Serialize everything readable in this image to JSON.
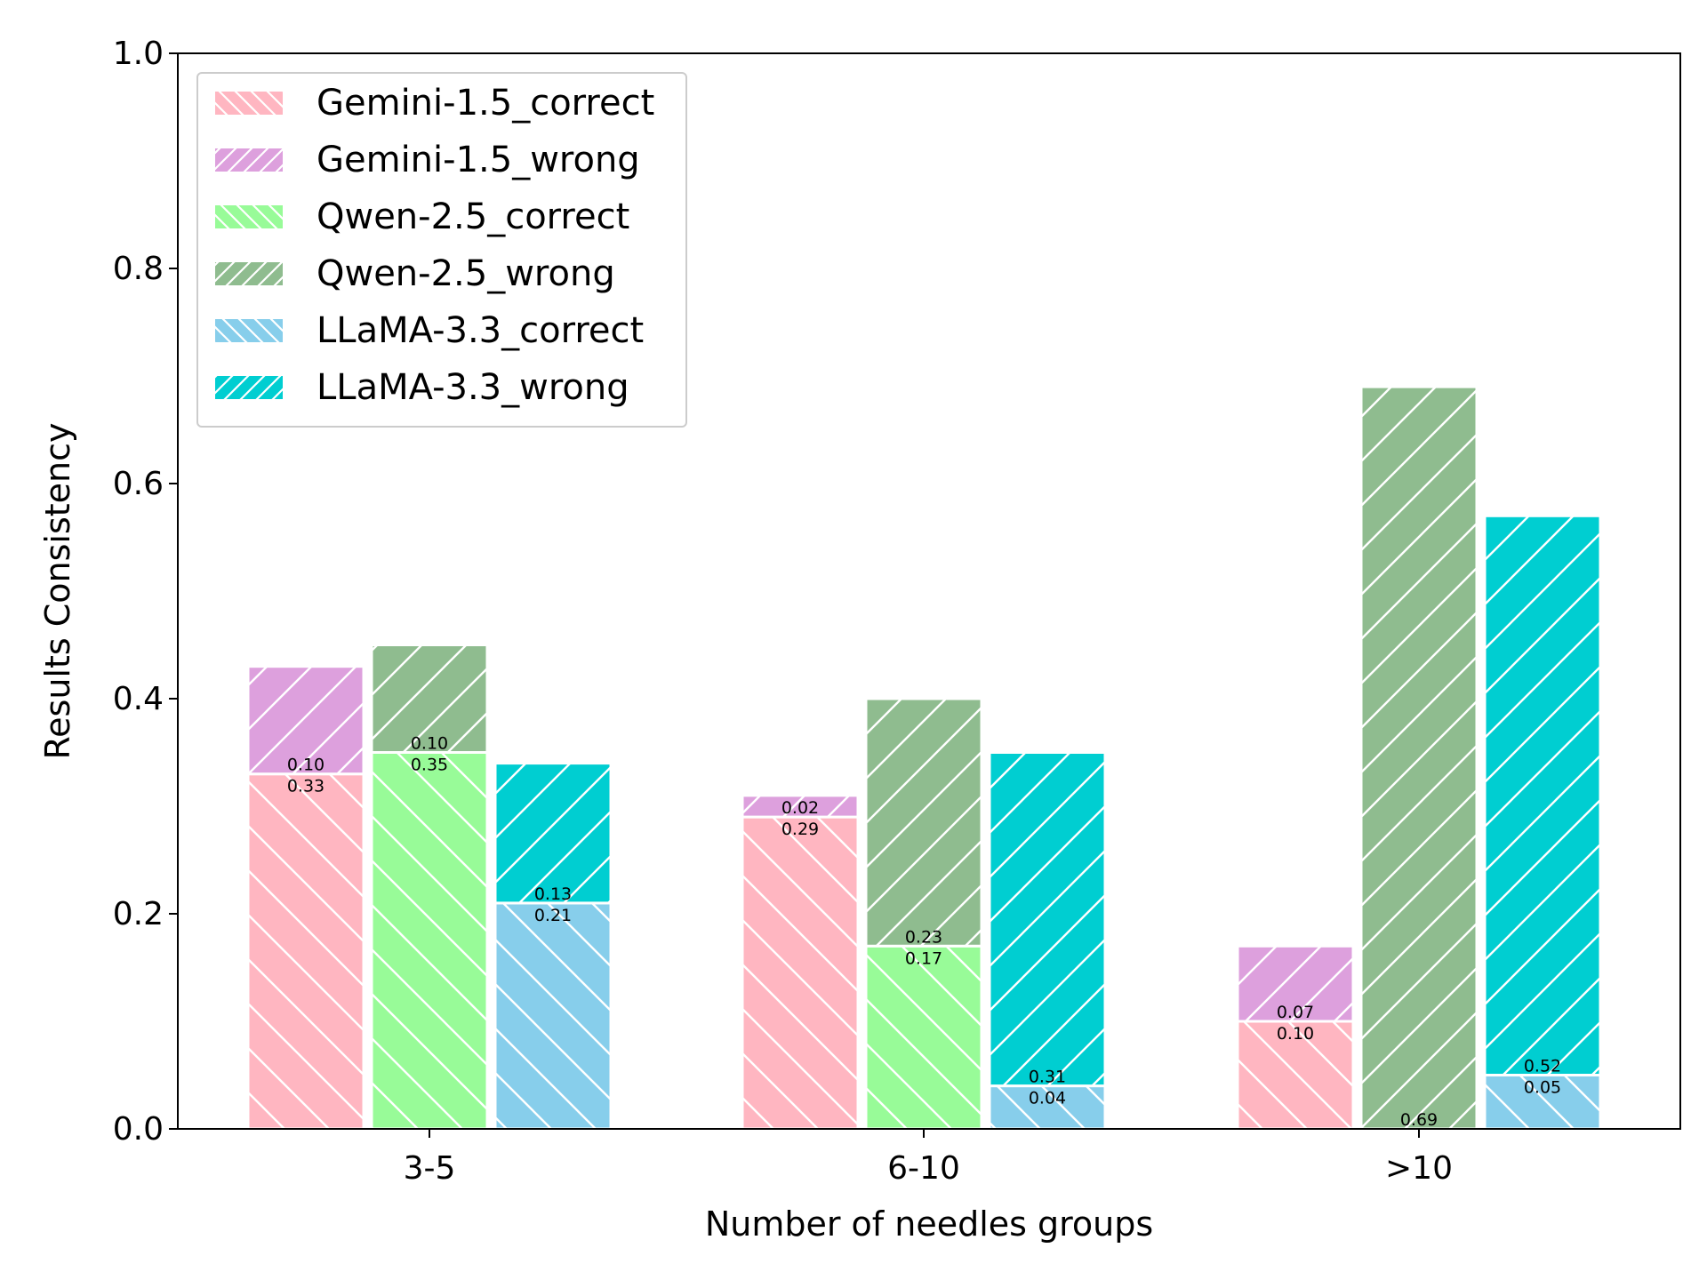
{
  "chart_data": {
    "type": "bar",
    "stacked": true,
    "grouped": true,
    "title": "",
    "xlabel": "Number of needles groups",
    "ylabel": "Results Consistency",
    "ylim": [
      0,
      1.0
    ],
    "yticks": [
      "0.0",
      "0.2",
      "0.4",
      "0.6",
      "0.8",
      "1.0"
    ],
    "categories": [
      "3-5",
      "6-10",
      ">10"
    ],
    "grid": false,
    "legend_position": "top-left",
    "models": [
      {
        "name": "Gemini-1.5",
        "correct": {
          "name": "Gemini-1.5_correct",
          "color": "#FFB6C1",
          "hatch": "backslash",
          "values": [
            0.33,
            0.29,
            0.1
          ],
          "labels": [
            "0.33",
            "0.29",
            "0.10"
          ]
        },
        "wrong": {
          "name": "Gemini-1.5_wrong",
          "color": "#DDA0DD",
          "hatch": "slash",
          "values": [
            0.1,
            0.02,
            0.07
          ],
          "labels": [
            "0.10",
            "0.02",
            "0.07"
          ]
        }
      },
      {
        "name": "Qwen-2.5",
        "correct": {
          "name": "Qwen-2.5_correct",
          "color": "#98FB98",
          "hatch": "backslash",
          "values": [
            0.35,
            0.17,
            0.0
          ],
          "labels": [
            "0.35",
            "0.17",
            ""
          ]
        },
        "wrong": {
          "name": "Qwen-2.5_wrong",
          "color": "#8FBC8F",
          "hatch": "slash",
          "values": [
            0.1,
            0.23,
            0.69
          ],
          "labels": [
            "0.10",
            "0.23",
            "0.69"
          ]
        }
      },
      {
        "name": "LLaMA-3.3",
        "correct": {
          "name": "LLaMA-3.3_correct",
          "color": "#87CEEB",
          "hatch": "backslash",
          "values": [
            0.21,
            0.04,
            0.05
          ],
          "labels": [
            "0.21",
            "0.04",
            "0.05"
          ]
        },
        "wrong": {
          "name": "LLaMA-3.3_wrong",
          "color": "#00CED1",
          "hatch": "slash",
          "values": [
            0.13,
            0.31,
            0.52
          ],
          "labels": [
            "0.13",
            "0.31",
            "0.52"
          ]
        }
      }
    ]
  }
}
